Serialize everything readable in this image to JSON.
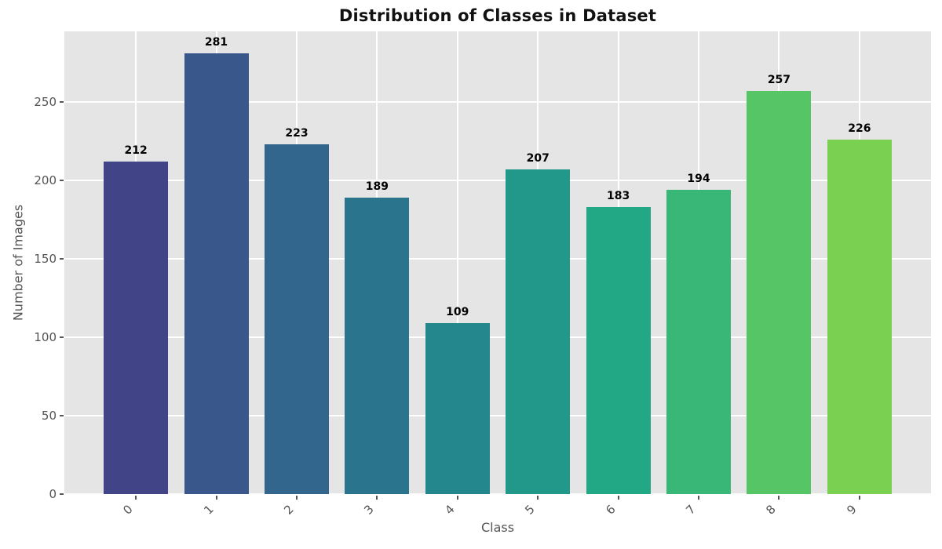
{
  "chart_data": {
    "type": "bar",
    "title": "Distribution of Classes in Dataset",
    "xlabel": "Class",
    "ylabel": "Number of Images",
    "categories": [
      "0",
      "1",
      "2",
      "3",
      "4",
      "5",
      "6",
      "7",
      "8",
      "9"
    ],
    "values": [
      212,
      281,
      223,
      189,
      109,
      207,
      183,
      194,
      257,
      226
    ],
    "bar_colors": [
      "#414487",
      "#39578B",
      "#32668D",
      "#2B748E",
      "#24878D",
      "#219889",
      "#22A884",
      "#38B777",
      "#55C566",
      "#7AD151"
    ],
    "value_labels": [
      "212",
      "281",
      "223",
      "189",
      "109",
      "207",
      "183",
      "194",
      "257",
      "226"
    ],
    "yticks": [
      0,
      50,
      100,
      150,
      200,
      250
    ],
    "ylim": [
      0,
      295
    ],
    "xtick_rotation": 45,
    "grid": true,
    "legend": "none",
    "colors": {
      "figure_background": "#ffffff",
      "plot_background": "#e5e5e5",
      "grid_color": "#ffffff",
      "tick_label_color": "#555555",
      "axis_label_color": "#555555",
      "title_color": "#111111",
      "value_label_color": "#000000",
      "tick_mark_color": "#555555"
    }
  }
}
